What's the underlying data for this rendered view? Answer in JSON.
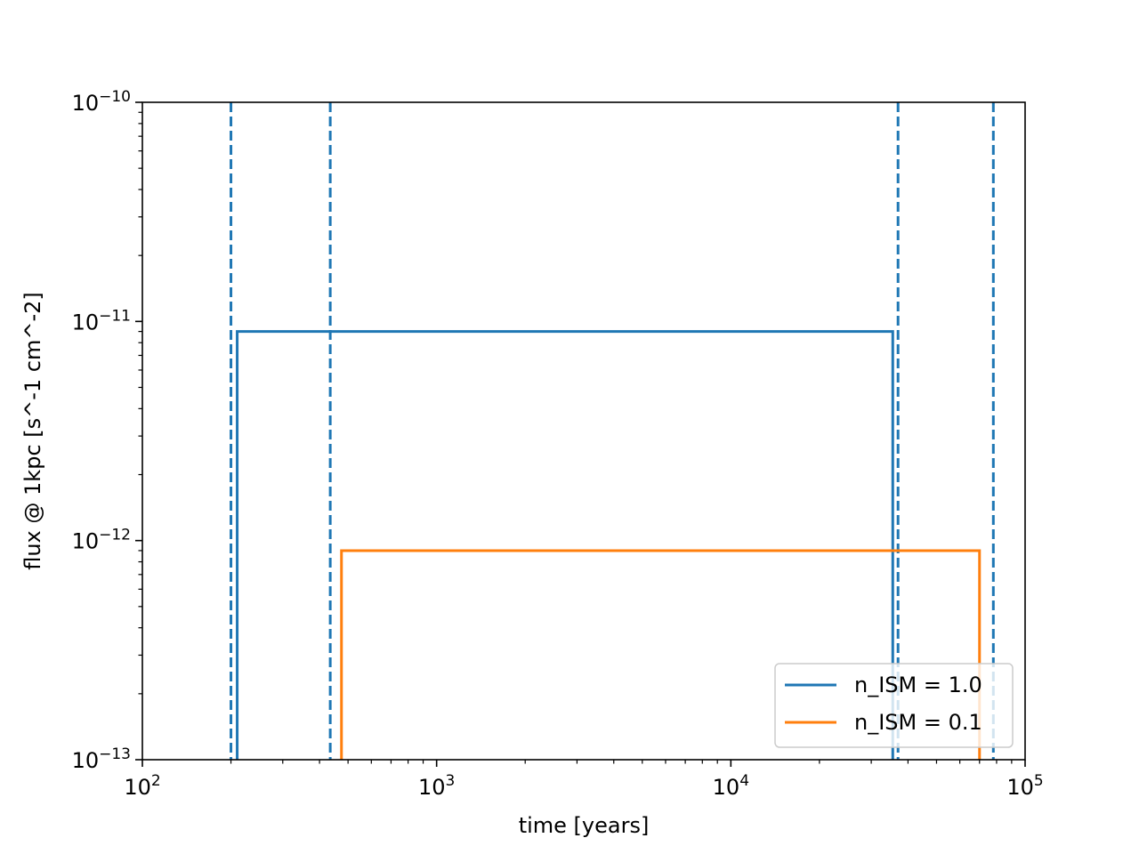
{
  "chart_data": {
    "type": "line",
    "title": "",
    "xlabel": "time [years]",
    "ylabel": "flux @ 1kpc [s^-1 cm^-2]",
    "xscale": "log",
    "yscale": "log",
    "xlim": [
      100,
      100000
    ],
    "ylim": [
      1e-13,
      1e-10
    ],
    "grid": false,
    "legend_position": "lower right",
    "x_ticks": [
      {
        "base": "10",
        "exp": "2"
      },
      {
        "base": "10",
        "exp": "3"
      },
      {
        "base": "10",
        "exp": "4"
      },
      {
        "base": "10",
        "exp": "5"
      }
    ],
    "y_ticks": [
      {
        "base": "10",
        "exp": "−13"
      },
      {
        "base": "10",
        "exp": "−12"
      },
      {
        "base": "10",
        "exp": "−11"
      },
      {
        "base": "10",
        "exp": "−10"
      }
    ],
    "series": [
      {
        "name": "n_ISM = 1.0",
        "color": "#1f77b4",
        "style": "step",
        "x": [
          210,
          210,
          35500,
          35500
        ],
        "y": [
          1e-13,
          9e-12,
          9e-12,
          1e-13
        ]
      },
      {
        "name": "n_ISM = 0.1",
        "color": "#ff7f0e",
        "style": "step",
        "x": [
          475,
          475,
          70000,
          70000
        ],
        "y": [
          1e-13,
          9e-13,
          9e-13,
          1e-13
        ]
      }
    ],
    "vlines": [
      {
        "x": 200,
        "color": "#1f77b4",
        "style": "dashed"
      },
      {
        "x": 435,
        "color": "#1f77b4",
        "style": "dashed"
      },
      {
        "x": 37000,
        "color": "#1f77b4",
        "style": "dashed"
      },
      {
        "x": 78000,
        "color": "#1f77b4",
        "style": "dashed"
      }
    ]
  }
}
